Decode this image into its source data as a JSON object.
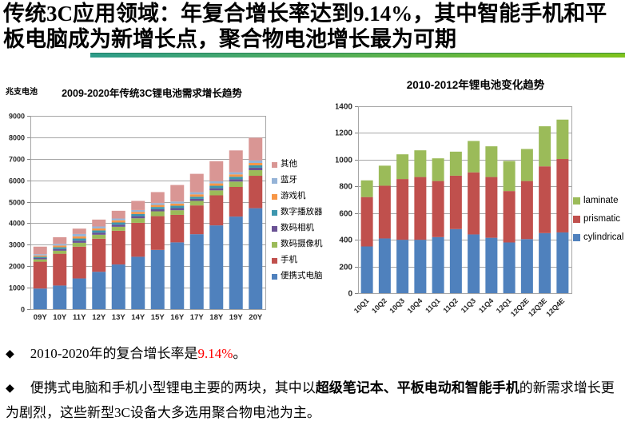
{
  "slide": {
    "title": "传统3C应用领域：年复合增长率达到9.14%，其中智能手机和平板电脑成为新增长点，聚合物电池增长最为可期",
    "underline_from": "#2e9c8a",
    "underline_to": "#7fc31c"
  },
  "chart_data": [
    {
      "type": "bar",
      "stacked": true,
      "title": "2009-2020年传统3C锂电池需求增长趋势",
      "ylabel": "兆支电池",
      "xlabel": "",
      "ylim": [
        0,
        9000
      ],
      "ytick_step": 1000,
      "grid": true,
      "legend_position": "right",
      "categories": [
        "09Y",
        "10Y",
        "11Y",
        "12Y",
        "13Y",
        "14Y",
        "15Y",
        "16Y",
        "17Y",
        "18Y",
        "19Y",
        "20Y"
      ],
      "series": [
        {
          "name": "便携式电脑",
          "color": "#4F81BD",
          "values": [
            960,
            1100,
            1430,
            1740,
            2080,
            2440,
            2760,
            3110,
            3490,
            3900,
            4310,
            4700
          ]
        },
        {
          "name": "手机",
          "color": "#C0504D",
          "values": [
            1250,
            1480,
            1480,
            1540,
            1570,
            1580,
            1570,
            1280,
            1340,
            1400,
            1380,
            1510
          ]
        },
        {
          "name": "数码摄像机",
          "color": "#9BBB59",
          "values": [
            110,
            140,
            180,
            185,
            185,
            210,
            225,
            215,
            210,
            230,
            250,
            260
          ]
        },
        {
          "name": "数码相机",
          "color": "#6A5294",
          "values": [
            60,
            80,
            100,
            100,
            100,
            100,
            100,
            100,
            95,
            100,
            110,
            115
          ]
        },
        {
          "name": "数字播放器",
          "color": "#3D96AE",
          "values": [
            60,
            80,
            100,
            100,
            100,
            100,
            100,
            110,
            100,
            115,
            115,
            110
          ]
        },
        {
          "name": "游戏机",
          "color": "#F79646",
          "values": [
            60,
            80,
            100,
            95,
            100,
            100,
            95,
            100,
            110,
            110,
            110,
            110
          ]
        },
        {
          "name": "蓝牙",
          "color": "#95B3D7",
          "values": [
            60,
            80,
            110,
            90,
            85,
            85,
            90,
            95,
            100,
            100,
            100,
            115
          ]
        },
        {
          "name": "其他",
          "color": "#D99694",
          "values": [
            350,
            310,
            250,
            320,
            360,
            425,
            510,
            770,
            855,
            935,
            1015,
            1060
          ]
        }
      ]
    },
    {
      "type": "bar",
      "stacked": true,
      "title": "2010-2012年锂电池变化趋势",
      "ylabel": "",
      "xlabel": "",
      "ylim": [
        0,
        1400
      ],
      "ytick_step": 200,
      "grid": true,
      "legend_position": "right",
      "xtick_rotation": -45,
      "categories": [
        "10Q1",
        "10Q2",
        "10Q3",
        "10Q4",
        "11Q1",
        "11Q2",
        "11Q3",
        "11Q4",
        "12Q1",
        "12Q2E",
        "12Q3E",
        "12Q4E"
      ],
      "series": [
        {
          "name": "cylindrical",
          "color": "#4F81BD",
          "values": [
            350,
            410,
            400,
            400,
            420,
            480,
            440,
            415,
            380,
            405,
            450,
            455
          ]
        },
        {
          "name": "prismatic",
          "color": "#C0504D",
          "values": [
            370,
            395,
            455,
            470,
            420,
            400,
            465,
            455,
            385,
            435,
            500,
            550
          ]
        },
        {
          "name": "laminate",
          "color": "#9BBB59",
          "values": [
            125,
            150,
            185,
            200,
            170,
            180,
            235,
            230,
            225,
            240,
            300,
            295
          ]
        }
      ]
    }
  ],
  "bullets": {
    "marker": "◆",
    "item1": {
      "text_before": "2010-2020年的复合增长率是",
      "highlight": "9.14%",
      "text_after": "。",
      "highlight_color": "#ff0000"
    },
    "item2": {
      "text_before": "便携式电脑和手机小型锂电主要的两块，其中以",
      "bold_text": "超级笔记本、平板电动和智能手机",
      "text_after": "的新需求增长更为剧烈，这些新型3C设备大多选用聚合物电池为主。"
    }
  }
}
